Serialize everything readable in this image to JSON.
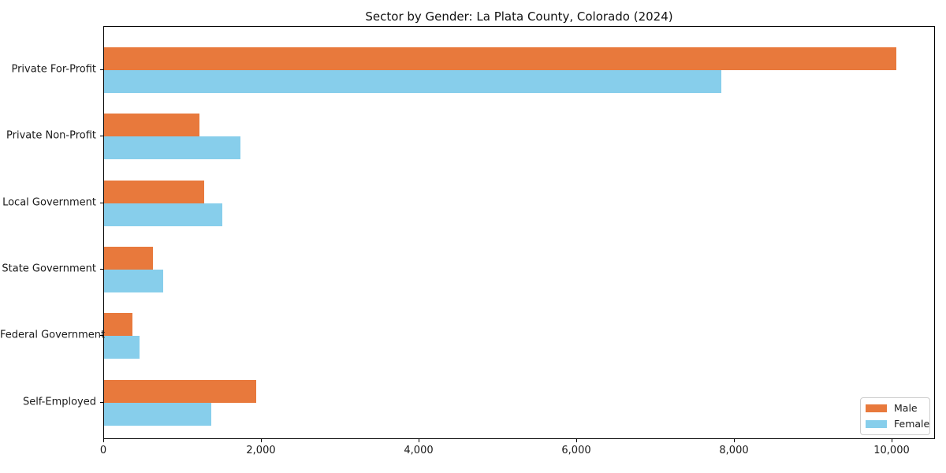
{
  "chart_data": {
    "type": "bar",
    "orientation": "horizontal",
    "title": "Sector by Gender: La Plata County, Colorado (2024)",
    "categories": [
      "Private For-Profit",
      "Private Non-Profit",
      "Local Government",
      "State Government",
      "Federal Government",
      "Self-Employed"
    ],
    "series": [
      {
        "name": "Male",
        "color": "#e8793c",
        "values": [
          10050,
          1210,
          1270,
          620,
          360,
          1930
        ]
      },
      {
        "name": "Female",
        "color": "#87ceeb",
        "values": [
          7830,
          1730,
          1500,
          750,
          450,
          1360
        ]
      }
    ],
    "xlabel": "",
    "ylabel": "",
    "xlim": [
      0,
      10550
    ],
    "xticks": [
      0,
      2000,
      4000,
      6000,
      8000,
      10000
    ],
    "xtick_labels": [
      "0",
      "2,000",
      "4,000",
      "6,000",
      "8,000",
      "10,000"
    ],
    "grid": false,
    "legend_position": "lower right"
  }
}
